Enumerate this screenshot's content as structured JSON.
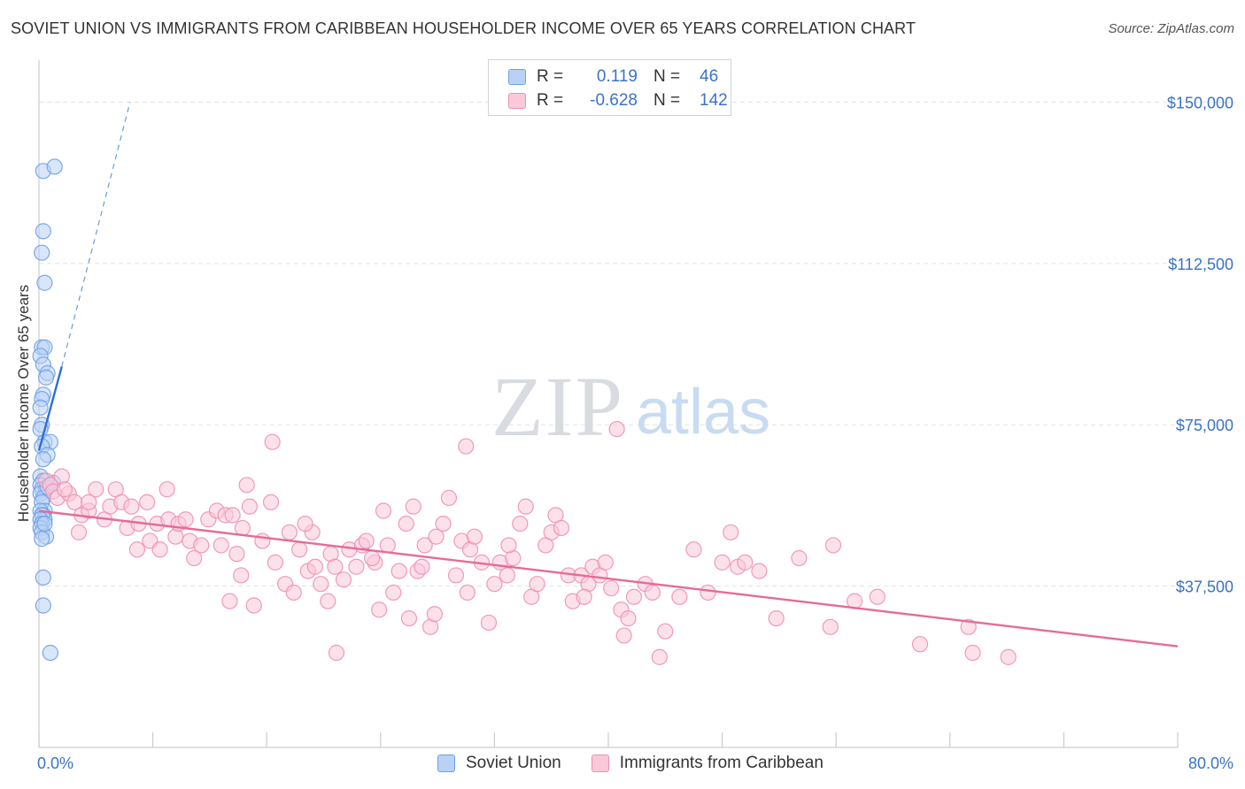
{
  "title": "SOVIET UNION VS IMMIGRANTS FROM CARIBBEAN HOUSEHOLDER INCOME OVER 65 YEARS CORRELATION CHART",
  "source": "Source: ZipAtlas.com",
  "watermark": {
    "zip": "ZIP",
    "atlas": "atlas"
  },
  "legend": {
    "rows": [
      {
        "r_label": "R =",
        "r_value": "0.119",
        "n_label": "N =",
        "n_value": "46",
        "color": "#6fa0e6",
        "fill": "#b9d1f5"
      },
      {
        "r_label": "R =",
        "r_value": "-0.628",
        "n_label": "N =",
        "n_value": "142",
        "color": "#ef8fb0",
        "fill": "#f9c9da"
      }
    ]
  },
  "bottom_legend": [
    "Soviet Union",
    "Immigrants from Caribbean"
  ],
  "chart_data": {
    "type": "scatter",
    "title": "SOVIET UNION VS IMMIGRANTS FROM CARIBBEAN HOUSEHOLDER INCOME OVER 65 YEARS CORRELATION CHART",
    "xlabel": "",
    "ylabel": "Householder Income Over 65 years",
    "xlim": [
      0,
      80
    ],
    "ylim": [
      0,
      157500
    ],
    "x_tick_labels": [
      "0.0%",
      "80.0%"
    ],
    "y_ticks": [
      37500,
      75000,
      112500,
      150000
    ],
    "y_tick_labels": [
      "$37,500",
      "$75,000",
      "$112,500",
      "$150,000"
    ],
    "grid": true,
    "series": [
      {
        "name": "Soviet Union",
        "color": "#6fa0e6",
        "fill": "#b9d1f5",
        "trend": {
          "x": [
            0.0,
            1.6
          ],
          "y": [
            69000,
            88500
          ],
          "dashed_extension": {
            "x": [
              1.6,
              6.4
            ],
            "y": [
              88500,
              150000
            ]
          }
        },
        "points": [
          [
            0.3,
            134000
          ],
          [
            1.1,
            135000
          ],
          [
            0.3,
            120000
          ],
          [
            0.2,
            115000
          ],
          [
            0.4,
            108000
          ],
          [
            0.2,
            93000
          ],
          [
            0.4,
            93000
          ],
          [
            0.1,
            91000
          ],
          [
            0.3,
            89000
          ],
          [
            0.6,
            87000
          ],
          [
            0.5,
            86000
          ],
          [
            0.3,
            82000
          ],
          [
            0.2,
            81000
          ],
          [
            0.1,
            79000
          ],
          [
            0.2,
            75000
          ],
          [
            0.1,
            74000
          ],
          [
            0.4,
            71000
          ],
          [
            0.8,
            71000
          ],
          [
            0.2,
            70000
          ],
          [
            0.6,
            68000
          ],
          [
            0.3,
            67000
          ],
          [
            0.1,
            63000
          ],
          [
            0.3,
            62000
          ],
          [
            0.1,
            61000
          ],
          [
            0.2,
            60000
          ],
          [
            0.5,
            60000
          ],
          [
            0.1,
            59000
          ],
          [
            0.3,
            58000
          ],
          [
            0.2,
            57000
          ],
          [
            0.4,
            55000
          ],
          [
            0.1,
            55000
          ],
          [
            0.3,
            54000
          ],
          [
            0.2,
            54000
          ],
          [
            0.4,
            53000
          ],
          [
            0.1,
            53000
          ],
          [
            0.2,
            52000
          ],
          [
            0.1,
            51000
          ],
          [
            0.2,
            50000
          ],
          [
            0.5,
            49000
          ],
          [
            0.3,
            39500
          ],
          [
            0.3,
            33000
          ],
          [
            0.8,
            22000
          ],
          [
            0.6,
            60500
          ],
          [
            1.0,
            61500
          ],
          [
            0.2,
            48500
          ],
          [
            0.4,
            52000
          ]
        ]
      },
      {
        "name": "Immigrants from Caribbean",
        "color": "#ef8fb0",
        "fill": "#f9c9da",
        "trend": {
          "x": [
            0.0,
            80.0
          ],
          "y": [
            55000,
            23500
          ]
        },
        "points": [
          [
            0.5,
            62000
          ],
          [
            0.8,
            61000
          ],
          [
            1.0,
            59500
          ],
          [
            1.3,
            58000
          ],
          [
            1.6,
            63000
          ],
          [
            2.1,
            59000
          ],
          [
            2.5,
            57000
          ],
          [
            1.8,
            60000
          ],
          [
            3.0,
            54000
          ],
          [
            3.5,
            55000
          ],
          [
            2.8,
            50000
          ],
          [
            4.0,
            60000
          ],
          [
            4.6,
            53000
          ],
          [
            5.0,
            56000
          ],
          [
            5.4,
            60000
          ],
          [
            5.8,
            57000
          ],
          [
            6.2,
            51000
          ],
          [
            7.0,
            52000
          ],
          [
            7.6,
            57000
          ],
          [
            6.5,
            56000
          ],
          [
            7.8,
            48000
          ],
          [
            8.5,
            46000
          ],
          [
            8.3,
            52000
          ],
          [
            9.1,
            53000
          ],
          [
            9.6,
            49000
          ],
          [
            9.8,
            52000
          ],
          [
            10.3,
            53000
          ],
          [
            10.6,
            48000
          ],
          [
            10.9,
            44000
          ],
          [
            11.4,
            47000
          ],
          [
            11.9,
            53000
          ],
          [
            12.5,
            55000
          ],
          [
            12.8,
            47000
          ],
          [
            13.1,
            54000
          ],
          [
            13.6,
            54000
          ],
          [
            13.9,
            45000
          ],
          [
            14.2,
            40000
          ],
          [
            14.3,
            51000
          ],
          [
            14.6,
            61000
          ],
          [
            14.8,
            56000
          ],
          [
            15.1,
            33000
          ],
          [
            15.7,
            48000
          ],
          [
            16.3,
            57000
          ],
          [
            16.6,
            43000
          ],
          [
            16.4,
            71000
          ],
          [
            17.6,
            50000
          ],
          [
            17.3,
            38000
          ],
          [
            17.9,
            36000
          ],
          [
            18.3,
            46000
          ],
          [
            18.9,
            41000
          ],
          [
            19.2,
            50000
          ],
          [
            19.4,
            42000
          ],
          [
            19.8,
            38000
          ],
          [
            20.5,
            45000
          ],
          [
            20.8,
            42000
          ],
          [
            20.3,
            34000
          ],
          [
            21.4,
            39000
          ],
          [
            21.8,
            46000
          ],
          [
            22.3,
            42000
          ],
          [
            22.7,
            47000
          ],
          [
            23.0,
            48000
          ],
          [
            23.6,
            43000
          ],
          [
            23.9,
            32000
          ],
          [
            24.5,
            47000
          ],
          [
            24.9,
            36000
          ],
          [
            24.2,
            55000
          ],
          [
            25.3,
            41000
          ],
          [
            25.8,
            52000
          ],
          [
            26.3,
            56000
          ],
          [
            26.0,
            30000
          ],
          [
            26.6,
            41000
          ],
          [
            27.1,
            47000
          ],
          [
            27.5,
            28000
          ],
          [
            27.9,
            49000
          ],
          [
            28.4,
            52000
          ],
          [
            28.8,
            58000
          ],
          [
            29.3,
            40000
          ],
          [
            29.7,
            48000
          ],
          [
            30.3,
            46000
          ],
          [
            30.6,
            49000
          ],
          [
            30.1,
            36000
          ],
          [
            31.1,
            43000
          ],
          [
            31.6,
            29000
          ],
          [
            32.0,
            38000
          ],
          [
            32.4,
            43000
          ],
          [
            32.9,
            40000
          ],
          [
            33.3,
            44000
          ],
          [
            33.8,
            52000
          ],
          [
            34.2,
            56000
          ],
          [
            34.6,
            35000
          ],
          [
            35.0,
            38000
          ],
          [
            35.6,
            47000
          ],
          [
            36.0,
            50000
          ],
          [
            36.3,
            54000
          ],
          [
            36.7,
            51000
          ],
          [
            37.2,
            40000
          ],
          [
            37.5,
            34000
          ],
          [
            38.1,
            40000
          ],
          [
            38.6,
            38000
          ],
          [
            38.9,
            42000
          ],
          [
            39.4,
            40000
          ],
          [
            39.8,
            43000
          ],
          [
            40.2,
            37000
          ],
          [
            40.6,
            74000
          ],
          [
            40.9,
            32000
          ],
          [
            41.4,
            30000
          ],
          [
            41.8,
            35000
          ],
          [
            42.6,
            38000
          ],
          [
            43.1,
            36000
          ],
          [
            44.0,
            27000
          ],
          [
            43.6,
            21000
          ],
          [
            45.0,
            35000
          ],
          [
            46.0,
            46000
          ],
          [
            47.0,
            36000
          ],
          [
            48.0,
            43000
          ],
          [
            48.6,
            50000
          ],
          [
            49.1,
            42000
          ],
          [
            49.6,
            43000
          ],
          [
            50.6,
            41000
          ],
          [
            51.8,
            30000
          ],
          [
            53.4,
            44000
          ],
          [
            55.6,
            28000
          ],
          [
            55.8,
            47000
          ],
          [
            57.3,
            34000
          ],
          [
            58.9,
            35000
          ],
          [
            61.9,
            24000
          ],
          [
            65.3,
            28000
          ],
          [
            65.6,
            22000
          ],
          [
            68.1,
            21000
          ],
          [
            20.9,
            22000
          ],
          [
            30.0,
            70000
          ],
          [
            9.0,
            60000
          ],
          [
            3.5,
            57000
          ],
          [
            6.9,
            46000
          ],
          [
            26.9,
            42000
          ],
          [
            33.0,
            47000
          ],
          [
            38.3,
            35000
          ],
          [
            41.1,
            26000
          ],
          [
            13.4,
            34000
          ],
          [
            18.7,
            52000
          ],
          [
            23.4,
            44000
          ],
          [
            27.8,
            31000
          ]
        ]
      }
    ]
  }
}
